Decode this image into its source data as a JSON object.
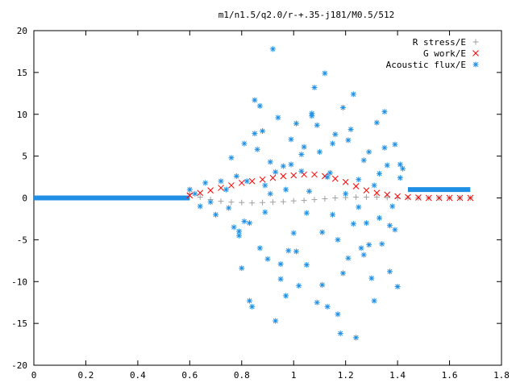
{
  "chart_data": {
    "type": "scatter",
    "title": "m1/n1.5/q2.0/r-+.35-j181/M0.5/512",
    "xlabel": "",
    "ylabel": "",
    "xlim": [
      0,
      1.8
    ],
    "ylim": [
      -20,
      20
    ],
    "xticks": [
      0,
      0.2,
      0.4,
      0.6,
      0.8,
      1,
      1.2,
      1.4,
      1.6,
      1.8
    ],
    "xtick_labels": [
      "0",
      "0.2",
      "0.4",
      "0.6",
      "0.8",
      "1",
      "1.2",
      "1.4",
      "1.6",
      "1.8"
    ],
    "yticks": [
      -20,
      -15,
      -10,
      -5,
      0,
      5,
      10,
      15,
      20
    ],
    "ytick_labels": [
      "-20",
      "-15",
      "-10",
      "-5",
      "0",
      "5",
      "10",
      "15",
      "20"
    ],
    "grid": false,
    "legend_position": "top-right",
    "series": [
      {
        "name": "R stress/E",
        "marker": "+",
        "color": "#a0a0a0",
        "x": [
          0.6,
          0.64,
          0.68,
          0.72,
          0.76,
          0.8,
          0.84,
          0.88,
          0.92,
          0.96,
          1.0,
          1.04,
          1.08,
          1.12,
          1.16,
          1.2,
          1.24,
          1.28,
          1.32,
          1.36,
          1.4,
          1.44,
          1.48,
          1.52,
          1.56,
          1.6,
          1.64,
          1.68
        ],
        "y": [
          0.5,
          0.1,
          -0.2,
          -0.4,
          -0.5,
          -0.55,
          -0.6,
          -0.55,
          -0.5,
          -0.45,
          -0.35,
          -0.3,
          -0.2,
          -0.1,
          0.0,
          0.05,
          0.1,
          0.1,
          0.1,
          0.05,
          0.0,
          0.0,
          0.0,
          0.0,
          0.0,
          0.0,
          0.0,
          0.0
        ]
      },
      {
        "name": "G work/E",
        "marker": "x",
        "color": "#ff0000",
        "x": [
          0.6,
          0.64,
          0.68,
          0.72,
          0.76,
          0.8,
          0.84,
          0.88,
          0.92,
          0.96,
          1.0,
          1.04,
          1.08,
          1.12,
          1.16,
          1.2,
          1.24,
          1.28,
          1.32,
          1.36,
          1.4,
          1.44,
          1.48,
          1.52,
          1.56,
          1.6,
          1.64,
          1.68
        ],
        "y": [
          0.3,
          0.6,
          0.9,
          1.2,
          1.5,
          1.8,
          2.0,
          2.2,
          2.4,
          2.6,
          2.7,
          2.8,
          2.8,
          2.6,
          2.3,
          1.9,
          1.4,
          0.9,
          0.6,
          0.4,
          0.2,
          0.1,
          0.05,
          0.0,
          0.0,
          0.0,
          0.0,
          0.0
        ]
      },
      {
        "name": "Acoustic flux/E",
        "marker": "*",
        "color": "#1f8fe5",
        "x": [
          0.6,
          0.62,
          0.64,
          0.66,
          0.68,
          0.7,
          0.72,
          0.74,
          0.75,
          0.76,
          0.77,
          0.78,
          0.79,
          0.8,
          0.81,
          0.82,
          0.83,
          0.84,
          0.85,
          0.86,
          0.87,
          0.88,
          0.89,
          0.9,
          0.91,
          0.92,
          0.93,
          0.94,
          0.95,
          0.96,
          0.97,
          0.98,
          0.99,
          1.0,
          1.01,
          1.02,
          1.03,
          1.04,
          1.05,
          1.06,
          1.07,
          1.08,
          1.09,
          1.1,
          1.11,
          1.12,
          1.13,
          1.14,
          1.15,
          1.16,
          1.17,
          1.18,
          1.19,
          1.2,
          1.21,
          1.22,
          1.23,
          1.24,
          1.25,
          1.26,
          1.27,
          1.28,
          1.29,
          1.3,
          1.31,
          1.32,
          1.33,
          1.34,
          1.35,
          1.36,
          1.37,
          1.38,
          1.39,
          1.4,
          1.41,
          1.42,
          0.79,
          0.83,
          0.87,
          0.91,
          0.95,
          0.99,
          1.03,
          1.07,
          1.11,
          1.15,
          1.19,
          1.23,
          1.27,
          1.31,
          1.35,
          1.39,
          0.81,
          0.85,
          0.89,
          0.93,
          0.97,
          1.01,
          1.05,
          1.09,
          1.13,
          1.17,
          1.21,
          1.25,
          1.29,
          1.33,
          1.37,
          1.41
        ],
        "y": [
          1.0,
          0.5,
          -1.0,
          1.8,
          -0.5,
          -2.0,
          2.0,
          1.0,
          -1.2,
          4.8,
          -3.5,
          2.6,
          -4.0,
          -8.4,
          6.5,
          2.0,
          -3.0,
          -13.0,
          11.7,
          5.8,
          -6.0,
          8.0,
          1.5,
          -7.3,
          0.5,
          17.8,
          -14.7,
          9.6,
          -9.7,
          3.8,
          1.0,
          -6.3,
          7.0,
          -4.2,
          8.9,
          -10.5,
          3.2,
          6.1,
          -8.0,
          0.8,
          9.8,
          13.2,
          -12.5,
          5.5,
          -10.4,
          14.9,
          -13.0,
          3.0,
          -2.0,
          7.6,
          -5.0,
          -16.2,
          10.8,
          0.5,
          -7.2,
          8.2,
          -3.1,
          -16.7,
          2.2,
          -6.0,
          4.5,
          -3.0,
          5.5,
          -9.6,
          -12.3,
          9.0,
          -2.4,
          -5.5,
          10.3,
          3.9,
          -8.8,
          -1.0,
          6.4,
          -10.6,
          4.0,
          3.5,
          -4.5,
          -12.3,
          11.0,
          4.3,
          -7.9,
          4.0,
          5.2,
          10.1,
          -4.1,
          6.5,
          -9.0,
          12.4,
          -6.8,
          1.5,
          6.0,
          -3.8,
          -2.8,
          7.7,
          -1.7,
          3.1,
          -11.7,
          -6.4,
          -1.8,
          8.7,
          2.5,
          -13.9,
          6.9,
          -1.1,
          -5.6,
          2.9,
          -3.3,
          2.4
        ]
      }
    ]
  }
}
